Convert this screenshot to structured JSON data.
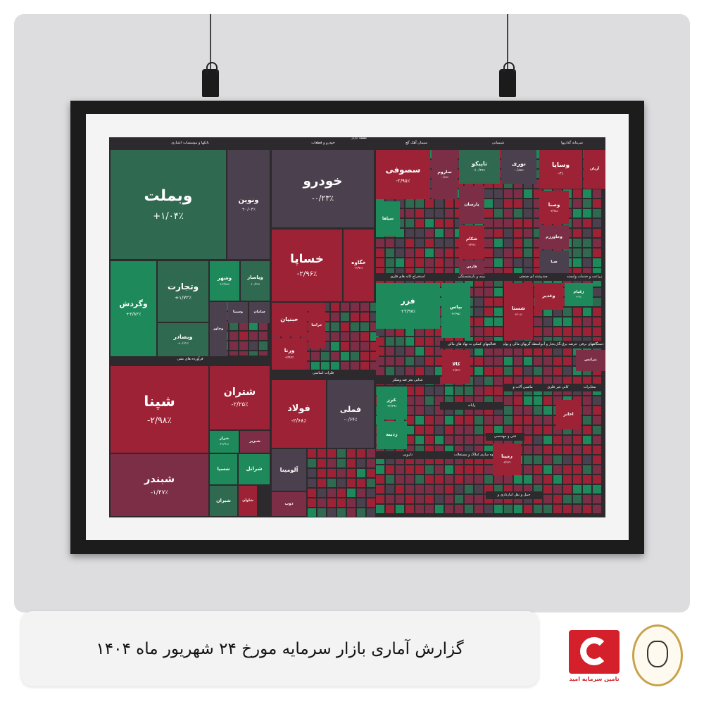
{
  "caption": "گزارش آماری بازار سرمایه مورخ ۲۴ شهریور ماه ۱۴۰۴",
  "logos": {
    "tamin": "تامین سرمایه امید",
    "bank": "بانک سپه"
  },
  "colors": {
    "strong_red": "#9e2235",
    "red": "#7b2e45",
    "neutral": "#4b404e",
    "green": "#2f6a50",
    "strong_green": "#1e8a5b",
    "background": "#2d2a2e"
  },
  "chart_data": {
    "type": "treemap",
    "title": "نقشه بازار",
    "sectors": [
      "بانکها و موسسات اعتباری",
      "خودرو و قطعات",
      "سیمان آهک گچ",
      "شیمیایی",
      "سرمایه گذاریها",
      "فرآورده های نفتی",
      "فلزات اساسی",
      "استخراج کانه های فلزی",
      "بیمه و بازنشستگی",
      "چندرشته ای صنعتی",
      "زراعت و خدمات وابسته",
      "فعالیتهای کمکی به نهاد های مالی",
      "واسطه گریهای مالی و پولی",
      "عرضه برق،گاز،بخار و آب",
      "دستگاههای برقی",
      "غذایی بجز قند وشکر",
      "رایانه",
      "ماشین آلات و",
      "کانی غیر فلزی",
      "مخابرات",
      "فنی و مهندسی",
      "دارویی",
      "انبوه سازی املاک و مستغلات",
      "حمل و نقل انبارداری و"
    ],
    "tiles": [
      {
        "symbol": "وبملت",
        "change": "+۱/۰۴٪",
        "c": "green"
      },
      {
        "symbol": "ونوین",
        "change": "+۰/۰۳٪",
        "c": "neutral"
      },
      {
        "symbol": "وگردش",
        "change": "+۲/۸۲٪",
        "c": "strong_green"
      },
      {
        "symbol": "وتجارت",
        "change": "+۱/۷۲٪",
        "c": "green"
      },
      {
        "symbol": "وبصادر",
        "change": "+۰/۶۱٪",
        "c": "green"
      },
      {
        "symbol": "وشهر",
        "change": "+۲/۹۸٪",
        "c": "strong_green"
      },
      {
        "symbol": "وپاسار",
        "change": "+۰/۳۹٪",
        "c": "green"
      },
      {
        "symbol": "وخاور",
        "change": "",
        "c": "neutral"
      },
      {
        "symbol": "وسینا",
        "change": "",
        "c": "neutral"
      },
      {
        "symbol": "سامان",
        "change": "",
        "c": "neutral"
      },
      {
        "symbol": "شپنا",
        "change": "-۲/۹۸٪",
        "c": "strong_red"
      },
      {
        "symbol": "شبندر",
        "change": "-۱/۴۷٪",
        "c": "red"
      },
      {
        "symbol": "شتران",
        "change": "-۲/۲۵٪",
        "c": "strong_red"
      },
      {
        "symbol": "شراز",
        "change": "+۲/۹۱٪",
        "c": "strong_green"
      },
      {
        "symbol": "شبریز",
        "change": "",
        "c": "red"
      },
      {
        "symbol": "شسپا",
        "change": "",
        "c": "strong_green"
      },
      {
        "symbol": "شرانل",
        "change": "",
        "c": "strong_green"
      },
      {
        "symbol": "شیران",
        "change": "",
        "c": "green"
      },
      {
        "symbol": "شاوان",
        "change": "",
        "c": "strong_red"
      },
      {
        "symbol": "خودرو",
        "change": "-۰/۲۳٪",
        "c": "neutral"
      },
      {
        "symbol": "خساپا",
        "change": "-۲/۹۶٪",
        "c": "strong_red"
      },
      {
        "symbol": "خگاوه",
        "change": "-۲/۹۱٪",
        "c": "strong_red"
      },
      {
        "symbol": "خبنیان",
        "change": "",
        "c": "strong_red"
      },
      {
        "symbol": "ورنا",
        "change": "-۲/۹۲٪",
        "c": "strong_red"
      },
      {
        "symbol": "خراسا",
        "change": "",
        "c": "strong_red"
      },
      {
        "symbol": "فولاد",
        "change": "-۲/۶۸٪",
        "c": "strong_red"
      },
      {
        "symbol": "فملی",
        "change": "-۰/۶۴٪",
        "c": "neutral"
      },
      {
        "symbol": "آلومینا",
        "change": "",
        "c": "neutral"
      },
      {
        "symbol": "ذوب",
        "change": "",
        "c": "red"
      },
      {
        "symbol": "سصوفی",
        "change": "-۲/۹۵٪",
        "c": "strong_red"
      },
      {
        "symbol": "ساروم",
        "change": "-۰/۸۹٪",
        "c": "red"
      },
      {
        "symbol": "سپاها",
        "change": "",
        "c": "strong_green"
      },
      {
        "symbol": "تاپیکو",
        "change": "+۰/۴۷٪",
        "c": "green"
      },
      {
        "symbol": "نوری",
        "change": "-۰/۸۸٪",
        "c": "neutral"
      },
      {
        "symbol": "پارسان",
        "change": "",
        "c": "red"
      },
      {
        "symbol": "شکام",
        "change": "-۲/۹۴٪",
        "c": "strong_red"
      },
      {
        "symbol": "فارس",
        "change": "",
        "c": "red"
      },
      {
        "symbol": "وساپا",
        "change": "-۳٪",
        "c": "strong_red"
      },
      {
        "symbol": "آریان",
        "change": "",
        "c": "strong_red"
      },
      {
        "symbol": "وصنا",
        "change": "-۲/۹۸٪",
        "c": "strong_red"
      },
      {
        "symbol": "وخاورزم",
        "change": "",
        "c": "red"
      },
      {
        "symbol": "صبا",
        "change": "",
        "c": "neutral"
      },
      {
        "symbol": "فزر",
        "change": "+۲/۹۸٪",
        "c": "strong_green"
      },
      {
        "symbol": "بپاس",
        "change": "+۲/۹۵٪",
        "c": "strong_green"
      },
      {
        "symbol": "شستا",
        "change": "-۲/۰۸٪",
        "c": "strong_red"
      },
      {
        "symbol": "وغدیر",
        "change": "",
        "c": "strong_red"
      },
      {
        "symbol": "زقیام",
        "change": "+۳٪",
        "c": "strong_green"
      },
      {
        "symbol": "کالا",
        "change": "-۲/۸۳٪",
        "c": "strong_red"
      },
      {
        "symbol": "غزر",
        "change": "+۲/۳۹٪",
        "c": "strong_green"
      },
      {
        "symbol": "زدینه",
        "change": "",
        "c": "strong_green"
      },
      {
        "symbol": "رمپنا",
        "change": "-۲/۴۳٪",
        "c": "strong_red"
      },
      {
        "symbol": "اخابر",
        "change": "",
        "c": "strong_red"
      },
      {
        "symbol": "بترانس",
        "change": "",
        "c": "red"
      }
    ]
  }
}
